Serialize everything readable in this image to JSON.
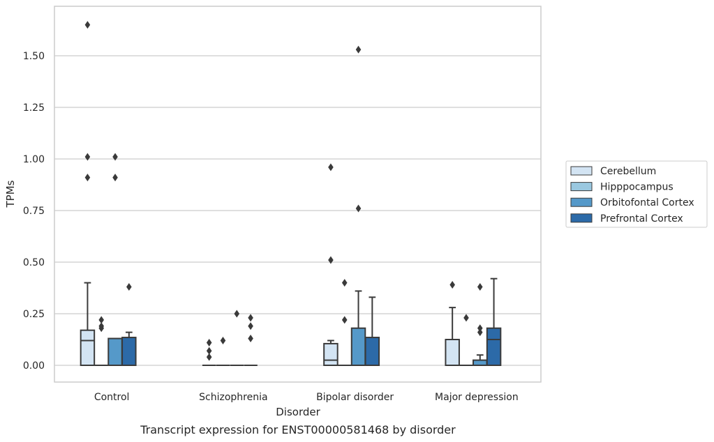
{
  "chart_data": {
    "type": "box",
    "title": "",
    "caption": "Transcript expression for ENST00000581468 by disorder",
    "xlabel": "Disorder",
    "ylabel": "TPMs",
    "ylim": [
      -0.08,
      1.74
    ],
    "yticks": [
      "0.00",
      "0.25",
      "0.50",
      "0.75",
      "1.00",
      "1.25",
      "1.50"
    ],
    "grid": "horizontal",
    "legend_position": "right",
    "categories": [
      "Control",
      "Schizophrenia",
      "Bipolar disorder",
      "Major depression"
    ],
    "series": [
      {
        "name": "Cerebellum",
        "color": "#d3e4f3",
        "boxes": [
          {
            "q1": 0,
            "median": 0.12,
            "q3": 0.17,
            "whisker_low": 0,
            "whisker_high": 0.4,
            "outliers": [
              1.65,
              1.01,
              0.91
            ]
          },
          {
            "q1": 0,
            "median": 0,
            "q3": 0,
            "whisker_low": 0,
            "whisker_high": 0,
            "outliers": [
              0.11,
              0.07,
              0.04
            ]
          },
          {
            "q1": 0,
            "median": 0.025,
            "q3": 0.105,
            "whisker_low": 0,
            "whisker_high": 0.12,
            "outliers": [
              0.96,
              0.51
            ]
          },
          {
            "q1": 0,
            "median": 0,
            "q3": 0.125,
            "whisker_low": 0,
            "whisker_high": 0.28,
            "outliers": [
              0.39
            ]
          }
        ]
      },
      {
        "name": "Hipppocampus",
        "color": "#9ac8e0",
        "boxes": [
          {
            "q1": 0,
            "median": 0,
            "q3": 0,
            "whisker_low": 0,
            "whisker_high": 0,
            "outliers": [
              0.22,
              0.19,
              0.18
            ]
          },
          {
            "q1": 0,
            "median": 0,
            "q3": 0,
            "whisker_low": 0,
            "whisker_high": 0,
            "outliers": [
              0.12
            ]
          },
          {
            "q1": 0,
            "median": 0,
            "q3": 0,
            "whisker_low": 0,
            "whisker_high": 0,
            "outliers": [
              0.4,
              0.22
            ]
          },
          {
            "q1": 0,
            "median": 0,
            "q3": 0,
            "whisker_low": 0,
            "whisker_high": 0,
            "outliers": [
              0.23
            ]
          }
        ]
      },
      {
        "name": "Orbitofontal Cortex",
        "color": "#5599c9",
        "boxes": [
          {
            "q1": 0,
            "median": 0,
            "q3": 0.13,
            "whisker_low": 0,
            "whisker_high": 0.13,
            "outliers": [
              1.01,
              0.91
            ]
          },
          {
            "q1": 0,
            "median": 0,
            "q3": 0,
            "whisker_low": 0,
            "whisker_high": 0,
            "outliers": [
              0.25
            ]
          },
          {
            "q1": 0,
            "median": 0,
            "q3": 0.18,
            "whisker_low": 0,
            "whisker_high": 0.36,
            "outliers": [
              1.53,
              0.76
            ]
          },
          {
            "q1": 0,
            "median": 0,
            "q3": 0.025,
            "whisker_low": 0,
            "whisker_high": 0.05,
            "outliers": [
              0.38,
              0.18,
              0.16
            ]
          }
        ]
      },
      {
        "name": "Prefrontal Cortex",
        "color": "#2c6aa8",
        "boxes": [
          {
            "q1": 0,
            "median": 0,
            "q3": 0.135,
            "whisker_low": 0,
            "whisker_high": 0.16,
            "outliers": [
              0.38
            ]
          },
          {
            "q1": 0,
            "median": 0,
            "q3": 0,
            "whisker_low": 0,
            "whisker_high": 0,
            "outliers": [
              0.23,
              0.19,
              0.13
            ]
          },
          {
            "q1": 0,
            "median": 0,
            "q3": 0.135,
            "whisker_low": 0,
            "whisker_high": 0.33,
            "outliers": []
          },
          {
            "q1": 0,
            "median": 0.125,
            "q3": 0.18,
            "whisker_low": 0,
            "whisker_high": 0.42,
            "outliers": []
          }
        ]
      }
    ]
  }
}
